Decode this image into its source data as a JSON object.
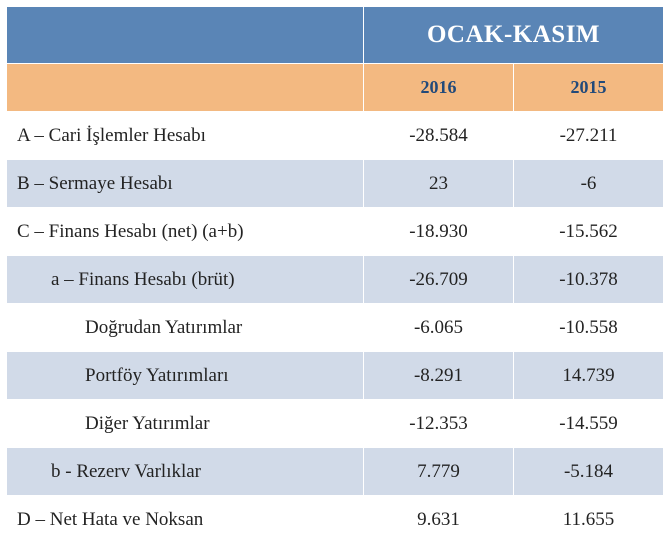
{
  "header": {
    "title": "OCAK-KASIM",
    "years": [
      "2016",
      "2015"
    ]
  },
  "colors": {
    "header_bg": "#5a85b6",
    "header_text": "#ffffff",
    "year_bg": "#f3b981",
    "year_text": "#224a7a",
    "band_a": "#ffffff",
    "band_b": "#d1dae8",
    "cell_border": "#ffffff",
    "text": "#232323"
  },
  "rows": [
    {
      "label": "A – Cari İşlemler Hesabı",
      "indent": 0,
      "v2016": "-28.584",
      "v2015": "-27.211",
      "band": "A"
    },
    {
      "label": "B – Sermaye Hesabı",
      "indent": 0,
      "v2016": "23",
      "v2015": "-6",
      "band": "B"
    },
    {
      "label": "C – Finans Hesabı (net) (a+b)",
      "indent": 0,
      "v2016": "-18.930",
      "v2015": "-15.562",
      "band": "A"
    },
    {
      "label": "a –   Finans Hesabı (brüt)",
      "indent": 1,
      "v2016": "-26.709",
      "v2015": "-10.378",
      "band": "B"
    },
    {
      "label": "Doğrudan Yatırımlar",
      "indent": 2,
      "v2016": "-6.065",
      "v2015": "-10.558",
      "band": "A"
    },
    {
      "label": "Portföy Yatırımları",
      "indent": 2,
      "v2016": "-8.291",
      "v2015": "14.739",
      "band": "B"
    },
    {
      "label": "Diğer Yatırımlar",
      "indent": 2,
      "v2016": "-12.353",
      "v2015": "-14.559",
      "band": "A"
    },
    {
      "label": "b -   Rezerv Varlıklar",
      "indent": 1,
      "v2016": "7.779",
      "v2015": "-5.184",
      "band": "B"
    },
    {
      "label": "D – Net Hata ve Noksan",
      "indent": 0,
      "v2016": "9.631",
      "v2015": "11.655",
      "band": "A"
    }
  ]
}
